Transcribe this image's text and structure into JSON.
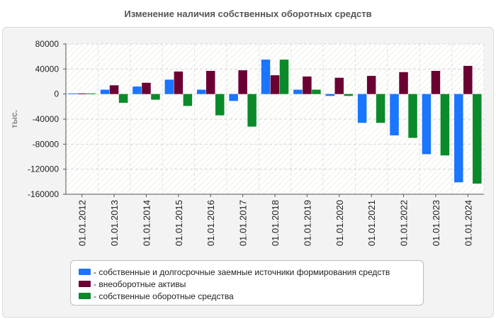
{
  "chart_data": {
    "type": "bar",
    "title": "Изменение наличия собственных оборотных средств",
    "ylabel": "тыс.",
    "xlabel": "",
    "ylim": [
      -160000,
      80000
    ],
    "yticks": [
      80000,
      40000,
      0,
      -40000,
      -80000,
      -120000,
      -160000
    ],
    "categories": [
      "01.01.2012",
      "01.01.2013",
      "01.01.2014",
      "01.01.2015",
      "01.01.2016",
      "01.01.2017",
      "01.01.2018",
      "01.01.2019",
      "01.01.2020",
      "01.01.2021",
      "01.01.2022",
      "01.01.2023",
      "01.01.2024"
    ],
    "series": [
      {
        "name": "- собственные и долгосрочные заемные источники формирования средств",
        "color": "#1a75ff",
        "values": [
          1000,
          7000,
          12000,
          23000,
          7000,
          -11000,
          55000,
          7000,
          -3000,
          -46000,
          -66000,
          -96000,
          -141000
        ]
      },
      {
        "name": "- внеоборотные активы",
        "color": "#6b0033",
        "values": [
          1000,
          14000,
          18000,
          36000,
          37000,
          38000,
          30000,
          28000,
          26000,
          29000,
          35000,
          37000,
          45000
        ]
      },
      {
        "name": "- собственные оборотные средства",
        "color": "#0b8a2a",
        "values": [
          1000,
          -14000,
          -9000,
          -19000,
          -34000,
          -52000,
          55000,
          7000,
          -3000,
          -46000,
          -70000,
          -98000,
          -143000
        ]
      }
    ],
    "grid": true,
    "legend_position": "bottom"
  }
}
